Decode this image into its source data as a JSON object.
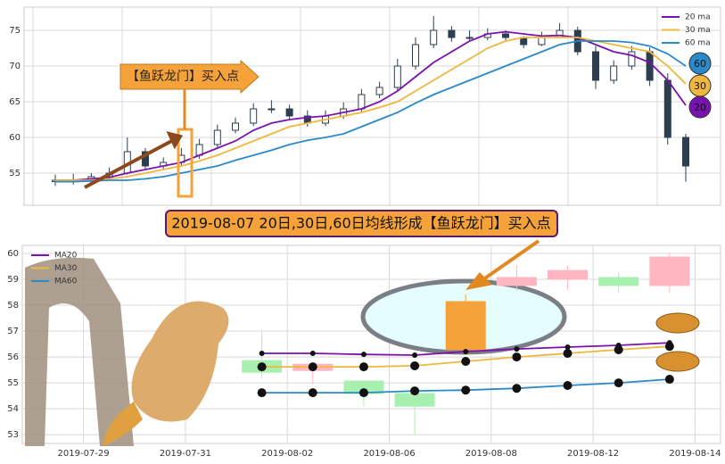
{
  "chart_data": [
    {
      "type": "candlestick",
      "open": [
        53.8,
        54,
        54,
        54.5,
        55,
        58,
        56,
        56.5,
        57.5,
        59,
        61,
        62,
        64,
        64,
        63,
        62,
        63,
        64,
        66,
        67,
        70,
        73,
        75,
        74,
        74,
        74.5,
        74,
        73,
        74,
        75,
        72,
        68,
        70,
        72,
        68,
        60
      ],
      "high": [
        54.8,
        54.9,
        55,
        55.8,
        60,
        58.5,
        57.2,
        58.5,
        59.8,
        61.8,
        62.8,
        64.8,
        65.2,
        64.6,
        63.8,
        63.8,
        64.9,
        66.8,
        67.8,
        71,
        74,
        77,
        75.6,
        75,
        75.3,
        75,
        74.2,
        74.8,
        76,
        75.5,
        72.8,
        70.8,
        72.8,
        72.6,
        69,
        60.5
      ],
      "low": [
        53.2,
        53.4,
        53.6,
        54.2,
        54.8,
        55.6,
        55.6,
        56,
        57,
        58.5,
        60.6,
        61.6,
        63.4,
        62.6,
        61.5,
        61.6,
        62.6,
        63.6,
        65.5,
        66.6,
        69.5,
        72.5,
        73.4,
        73.4,
        73.6,
        73.5,
        72.5,
        72.8,
        74.2,
        71.5,
        66.8,
        67.5,
        69.5,
        67.2,
        59,
        53.8
      ],
      "close": [
        54,
        54,
        54.5,
        55,
        58,
        56,
        56.5,
        57.5,
        59,
        61,
        62,
        64,
        64,
        63,
        62,
        63,
        64,
        66,
        67,
        70,
        73,
        75,
        74,
        74,
        74.5,
        74,
        73,
        74,
        75,
        72,
        68,
        70,
        72,
        68,
        60,
        56
      ],
      "color": "#2c3e50",
      "series": [
        {
          "name": "20 ma",
          "badge": "20",
          "color": "#7a12b0",
          "values": [
            54,
            54,
            54.2,
            54.4,
            55,
            55.5,
            56,
            56.5,
            57.5,
            58.5,
            59.5,
            61,
            62,
            62.5,
            62.8,
            63,
            63.5,
            64,
            65,
            66.5,
            68.5,
            70.5,
            72,
            73.5,
            74.5,
            74.8,
            74.5,
            74.2,
            74.3,
            74,
            73,
            72,
            71.5,
            70.5,
            68,
            64.5
          ]
        },
        {
          "name": "30 ma",
          "badge": "30",
          "color": "#f0b73e",
          "values": [
            54,
            54,
            54,
            54.2,
            54.5,
            55,
            55.5,
            56,
            56.7,
            57.5,
            58.5,
            59.5,
            60.5,
            61.5,
            62,
            62.5,
            63,
            63.5,
            64.2,
            65,
            66.5,
            68,
            69.5,
            71,
            72.5,
            73.5,
            74,
            74,
            74,
            74,
            73.5,
            73,
            72.5,
            72,
            70,
            67.5
          ]
        },
        {
          "name": "60 ma",
          "badge": "60",
          "color": "#2a8ac8",
          "values": [
            53.8,
            53.8,
            53.9,
            54,
            54,
            54.2,
            54.5,
            55,
            55.5,
            56,
            56.8,
            57.5,
            58.2,
            59,
            59.6,
            60,
            60.5,
            61.5,
            62.5,
            63.5,
            64.8,
            66,
            67,
            68,
            69,
            70,
            71,
            72,
            73,
            73.5,
            73.5,
            73.5,
            73.3,
            72.8,
            71.7,
            70
          ]
        }
      ],
      "ylim": [
        50.5,
        78.25
      ],
      "yticks": [
        55,
        60,
        65,
        70,
        75
      ],
      "grid": true,
      "legend": "upper right",
      "annotation": "【鱼跃龙门】买入点"
    },
    {
      "type": "candlestick",
      "title": "2019-08-07 20日,30日,60日均线形成【鱼跃龙门】买入点",
      "x": [
        3.5,
        4.5,
        5.5,
        6.5,
        7.5,
        8.5,
        9.5,
        10.5,
        11.5
      ],
      "open": [
        55.86,
        55.48,
        55.07,
        54.59,
        56.28,
        58.76,
        59.0,
        59.07,
        58.76
      ],
      "high": [
        56.97,
        55.72,
        55.07,
        54.76,
        58.41,
        59.55,
        59.55,
        59.28,
        60.0
      ],
      "low": [
        55.2,
        54.97,
        54.1,
        53.0,
        56.07,
        58.55,
        58.59,
        58.48,
        58.48
      ],
      "close": [
        55.41,
        55.72,
        54.59,
        54.1,
        58.14,
        59.07,
        59.34,
        58.76,
        59.86
      ],
      "colors": [
        "#a8f0b0",
        "#ffb6c1",
        "#a8f0b0",
        "#a8f0b0",
        "#f5a23a",
        "#ffb6c1",
        "#ffb6c1",
        "#a8f0b0",
        "#ffb6c1"
      ],
      "series": [
        {
          "name": "MA20",
          "color": "#7a12b0",
          "values": [
            56.14,
            56.14,
            56.1,
            56.07,
            56.21,
            56.31,
            56.38,
            56.45,
            56.55
          ]
        },
        {
          "name": "MA30",
          "color": "#f0b73e",
          "values": [
            55.62,
            55.62,
            55.62,
            55.66,
            55.83,
            56.0,
            56.14,
            56.28,
            56.41
          ]
        },
        {
          "name": "MA60",
          "color": "#2a8ac8",
          "values": [
            54.62,
            54.62,
            54.62,
            54.69,
            54.72,
            54.79,
            54.9,
            55.0,
            55.14
          ]
        }
      ],
      "xlim": [
        -1.2,
        12.5
      ],
      "xticks": [
        {
          "value": 0,
          "label": "2019-07-29"
        },
        {
          "value": 2,
          "label": "2019-07-31"
        },
        {
          "value": 4,
          "label": "2019-08-02"
        },
        {
          "value": 6,
          "label": "2019-08-06"
        },
        {
          "value": 8,
          "label": "2019-08-08"
        },
        {
          "value": 10,
          "label": "2019-08-12"
        },
        {
          "value": 12,
          "label": "2019-08-14"
        }
      ],
      "ylim": [
        52.66,
        60.31
      ],
      "yticks": [
        53,
        54,
        55,
        56,
        57,
        58,
        59,
        60
      ],
      "grid": true,
      "legend": "upper left"
    }
  ]
}
